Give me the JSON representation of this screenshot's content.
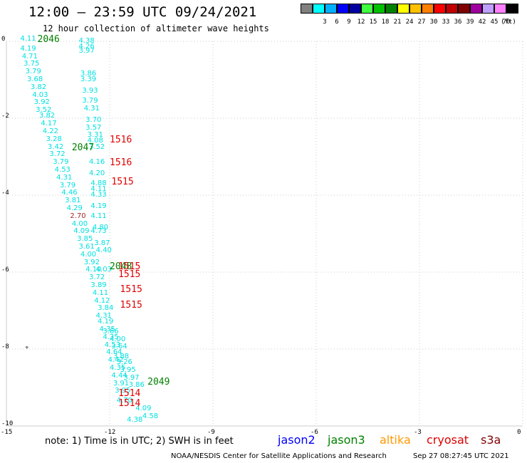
{
  "header": {
    "title": "12:00 — 23:59 UTC 09/24/2021",
    "subtitle": "12 hour collection of altimeter wave heights"
  },
  "legend": {
    "unit": "(ft)",
    "items": [
      {
        "label": "",
        "color": "#808080"
      },
      {
        "label": "3",
        "color": "#00ffff"
      },
      {
        "label": "6",
        "color": "#00b0ff"
      },
      {
        "label": "9",
        "color": "#0000ff"
      },
      {
        "label": "12",
        "color": "#0000a0"
      },
      {
        "label": "15",
        "color": "#40ff40"
      },
      {
        "label": "18",
        "color": "#00c000"
      },
      {
        "label": "21",
        "color": "#008000"
      },
      {
        "label": "24",
        "color": "#ffff00"
      },
      {
        "label": "27",
        "color": "#ffc000"
      },
      {
        "label": "30",
        "color": "#ff8000"
      },
      {
        "label": "33",
        "color": "#ff0000"
      },
      {
        "label": "36",
        "color": "#c00000"
      },
      {
        "label": "39",
        "color": "#800000"
      },
      {
        "label": "42",
        "color": "#a000a0"
      },
      {
        "label": "45",
        "color": "#c0a0ff"
      },
      {
        "label": "70",
        "color": "#ff80ff"
      },
      {
        "label": "",
        "color": "#000000"
      }
    ]
  },
  "axes": {
    "lat_ticks": [
      "0",
      "-2",
      "-4",
      "-6",
      "-8",
      "-10"
    ],
    "lon_ticks": [
      "-15",
      "-12",
      "-9",
      "-6",
      "-3",
      "0"
    ],
    "lat_range": [
      0,
      -10
    ],
    "lon_range": [
      -15,
      0
    ]
  },
  "map": {
    "grid_color": "#cccccc",
    "mark": "⌔"
  },
  "observations": [
    {
      "v": "4.11",
      "x": -14.6,
      "y": 0.05
    },
    {
      "v": "4.19",
      "x": -14.6,
      "y": -0.2
    },
    {
      "v": "4.71",
      "x": -14.55,
      "y": -0.4
    },
    {
      "v": "3.75",
      "x": -14.5,
      "y": -0.6
    },
    {
      "v": "3.79",
      "x": -14.45,
      "y": -0.8
    },
    {
      "v": "3.68",
      "x": -14.4,
      "y": -1.0
    },
    {
      "v": "3.82",
      "x": -14.3,
      "y": -1.2
    },
    {
      "v": "4.03",
      "x": -14.25,
      "y": -1.4
    },
    {
      "v": "3.92",
      "x": -14.2,
      "y": -1.6
    },
    {
      "v": "3.52",
      "x": -14.15,
      "y": -1.8
    },
    {
      "v": "3.82",
      "x": -14.05,
      "y": -1.95
    },
    {
      "v": "4.17",
      "x": -14.0,
      "y": -2.15
    },
    {
      "v": "4.22",
      "x": -13.95,
      "y": -2.35
    },
    {
      "v": "3.28",
      "x": -13.85,
      "y": -2.55
    },
    {
      "v": "3.42",
      "x": -13.8,
      "y": -2.75
    },
    {
      "v": "3.72",
      "x": -13.75,
      "y": -2.95
    },
    {
      "v": "3.79",
      "x": -13.65,
      "y": -3.15
    },
    {
      "v": "4.53",
      "x": -13.6,
      "y": -3.35
    },
    {
      "v": "4.31",
      "x": -13.55,
      "y": -3.55
    },
    {
      "v": "3.79",
      "x": -13.45,
      "y": -3.75
    },
    {
      "v": "4.46",
      "x": -13.4,
      "y": -3.95
    },
    {
      "v": "3.81",
      "x": -13.3,
      "y": -4.15
    },
    {
      "v": "4.29",
      "x": -13.25,
      "y": -4.35
    },
    {
      "v": "2.70",
      "x": -13.15,
      "y": -4.55,
      "c": "red"
    },
    {
      "v": "4.00",
      "x": -13.1,
      "y": -4.75
    },
    {
      "v": "4.09",
      "x": -13.05,
      "y": -4.95
    },
    {
      "v": "3.85",
      "x": -12.95,
      "y": -5.15
    },
    {
      "v": "3.61",
      "x": -12.9,
      "y": -5.35
    },
    {
      "v": "4.00",
      "x": -12.85,
      "y": -5.55
    },
    {
      "v": "3.92",
      "x": -12.75,
      "y": -5.75
    },
    {
      "v": "4.10",
      "x": -12.7,
      "y": -5.95
    },
    {
      "v": "3.72",
      "x": -12.6,
      "y": -6.15
    },
    {
      "v": "3.89",
      "x": -12.55,
      "y": -6.35
    },
    {
      "v": "4.11",
      "x": -12.5,
      "y": -6.55
    },
    {
      "v": "4.12",
      "x": -12.45,
      "y": -6.75
    },
    {
      "v": "3.84",
      "x": -12.35,
      "y": -6.95
    },
    {
      "v": "4.31",
      "x": -12.4,
      "y": -7.15
    },
    {
      "v": "4.19",
      "x": -12.35,
      "y": -7.3
    },
    {
      "v": "4.35",
      "x": -12.3,
      "y": -7.5
    },
    {
      "v": "4.35",
      "x": -12.2,
      "y": -7.7
    },
    {
      "v": "4.53",
      "x": -12.15,
      "y": -7.9
    },
    {
      "v": "4.64",
      "x": -12.1,
      "y": -8.1
    },
    {
      "v": "4.42",
      "x": -12.05,
      "y": -8.3
    },
    {
      "v": "4.35",
      "x": -12.0,
      "y": -8.5
    },
    {
      "v": "4.44",
      "x": -11.95,
      "y": -8.7
    },
    {
      "v": "3.91",
      "x": -11.9,
      "y": -8.9
    },
    {
      "v": "3.95",
      "x": -11.85,
      "y": -9.1
    },
    {
      "v": "4.70",
      "x": -11.8,
      "y": -9.35
    },
    {
      "v": "4.38",
      "x": -11.5,
      "y": -9.85
    },
    {
      "v": "4.38",
      "x": -12.9,
      "y": 0.0
    },
    {
      "v": "4.26",
      "x": -12.9,
      "y": -0.15
    },
    {
      "v": "3.97",
      "x": -12.9,
      "y": -0.25
    },
    {
      "v": "3.86",
      "x": -12.85,
      "y": -0.85
    },
    {
      "v": "3.39",
      "x": -12.85,
      "y": -1.0
    },
    {
      "v": "3.93",
      "x": -12.8,
      "y": -1.3
    },
    {
      "v": "3.79",
      "x": -12.8,
      "y": -1.55
    },
    {
      "v": "4.31",
      "x": -12.75,
      "y": -1.75
    },
    {
      "v": "3.70",
      "x": -12.7,
      "y": -2.05
    },
    {
      "v": "3.57",
      "x": -12.7,
      "y": -2.25
    },
    {
      "v": "3.31",
      "x": -12.65,
      "y": -2.45
    },
    {
      "v": "4.08",
      "x": -12.65,
      "y": -2.6
    },
    {
      "v": "3.52",
      "x": -12.6,
      "y": -2.75
    },
    {
      "v": "4.16",
      "x": -12.6,
      "y": -3.15
    },
    {
      "v": "4.20",
      "x": -12.6,
      "y": -3.45
    },
    {
      "v": "4.88",
      "x": -12.55,
      "y": -3.7
    },
    {
      "v": "4.11",
      "x": -12.55,
      "y": -3.85
    },
    {
      "v": "4.33",
      "x": -12.55,
      "y": -4.0
    },
    {
      "v": "4.19",
      "x": -12.55,
      "y": -4.3
    },
    {
      "v": "4.11",
      "x": -12.55,
      "y": -4.55
    },
    {
      "v": "4.80",
      "x": -12.5,
      "y": -4.85
    },
    {
      "v": "4.73",
      "x": -12.55,
      "y": -4.95
    },
    {
      "v": "3.87",
      "x": -12.45,
      "y": -5.25
    },
    {
      "v": "4.40",
      "x": -12.4,
      "y": -5.45
    },
    {
      "v": "4.03",
      "x": -12.4,
      "y": -5.95
    },
    {
      "v": "3.66",
      "x": -12.2,
      "y": -7.55
    },
    {
      "v": "4.00",
      "x": -12.0,
      "y": -7.75
    },
    {
      "v": "3.64",
      "x": -11.95,
      "y": -7.95
    },
    {
      "v": "3.88",
      "x": -11.9,
      "y": -8.2
    },
    {
      "v": "3.26",
      "x": -11.8,
      "y": -8.35
    },
    {
      "v": "3.95",
      "x": -11.7,
      "y": -8.55
    },
    {
      "v": "3.97",
      "x": -11.6,
      "y": -8.75
    },
    {
      "v": "3.86",
      "x": -11.45,
      "y": -8.95
    },
    {
      "v": "4.09",
      "x": -11.25,
      "y": -9.55
    },
    {
      "v": "4.58",
      "x": -11.05,
      "y": -9.75
    }
  ],
  "passes": [
    {
      "label": "2046",
      "x": -14.1,
      "y": 0.05,
      "color": "#008000"
    },
    {
      "label": "2047",
      "x": -13.1,
      "y": -2.75,
      "color": "#008000"
    },
    {
      "label": "2048",
      "x": -12.0,
      "y": -5.85,
      "color": "#008000"
    },
    {
      "label": "2049",
      "x": -10.9,
      "y": -8.85,
      "color": "#008000"
    },
    {
      "label": "1516",
      "x": -12.0,
      "y": -2.55,
      "color": "#e00000"
    },
    {
      "label": "1516",
      "x": -12.0,
      "y": -3.15,
      "color": "#e00000"
    },
    {
      "label": "1515",
      "x": -11.95,
      "y": -3.65,
      "color": "#e00000"
    },
    {
      "label": "1515",
      "x": -11.75,
      "y": -5.85,
      "color": "#e00000"
    },
    {
      "label": "1515",
      "x": -11.75,
      "y": -6.05,
      "color": "#e00000"
    },
    {
      "label": "1515",
      "x": -11.7,
      "y": -6.45,
      "color": "#e00000"
    },
    {
      "label": "1515",
      "x": -11.7,
      "y": -6.85,
      "color": "#e00000"
    },
    {
      "label": "1514",
      "x": -11.75,
      "y": -9.15,
      "color": "#e00000"
    },
    {
      "label": "1514",
      "x": -11.75,
      "y": -9.4,
      "color": "#e00000"
    }
  ],
  "footer": {
    "note": "note: 1) Time is in UTC; 2) SWH is in feet",
    "missions": [
      {
        "name": "jason2",
        "color": "#0000ff"
      },
      {
        "name": "jason3",
        "color": "#008000"
      },
      {
        "name": "altika",
        "color": "#ff9900"
      },
      {
        "name": "cryosat",
        "color": "#e00000"
      },
      {
        "name": "s3a",
        "color": "#800000"
      }
    ],
    "credit": "NOAA/NESDIS Center for Satellite Applications and Research",
    "timestamp": "Sep 27 08:27:45 UTC 2021"
  }
}
